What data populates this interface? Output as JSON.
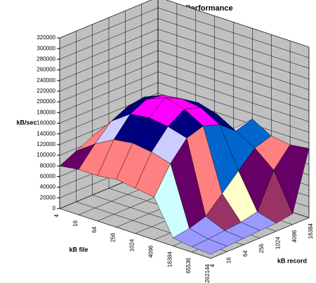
{
  "chart_data": {
    "type": "surface",
    "title": "Read Performance",
    "x_label": "kB file",
    "y_label": "kB record",
    "z_label": "kB/sec",
    "x_categories": [
      "4",
      "16",
      "64",
      "256",
      "1024",
      "4096",
      "16384",
      "65536",
      "262144"
    ],
    "y_categories": [
      "4",
      "16",
      "64",
      "256",
      "1024",
      "4096",
      "16384"
    ],
    "values": [
      [
        80000,
        95000,
        110000,
        120000,
        125000,
        130000,
        135000
      ],
      [
        85000,
        120000,
        150000,
        165000,
        170000,
        150000,
        135000
      ],
      [
        85000,
        140000,
        175000,
        190000,
        185000,
        165000,
        140000
      ],
      [
        90000,
        145000,
        180000,
        205000,
        190000,
        170000,
        130000
      ],
      [
        85000,
        140000,
        175000,
        195000,
        185000,
        160000,
        120000
      ],
      [
        80000,
        130000,
        165000,
        175000,
        165000,
        140000,
        150000
      ],
      [
        15000,
        20000,
        30000,
        60000,
        90000,
        120000,
        130000
      ],
      [
        10000,
        12000,
        15000,
        18000,
        25000,
        90000,
        125000
      ],
      [
        8000,
        10000,
        12000,
        14000,
        15000,
        20000,
        130000
      ]
    ],
    "zlim": [
      0,
      320000
    ],
    "zticks": [
      0,
      20000,
      40000,
      60000,
      80000,
      100000,
      120000,
      140000,
      160000,
      180000,
      200000,
      220000,
      240000,
      260000,
      280000,
      300000,
      320000
    ],
    "band_colors": [
      "#9999ff",
      "#993366",
      "#ffffcc",
      "#ccffff",
      "#660066",
      "#ff8080",
      "#0066cc",
      "#ccccff",
      "#000080",
      "#ff00ff",
      "#ffff00",
      "#00ffff",
      "#800080",
      "#800000",
      "#008080",
      "#0000ff"
    ],
    "grid": true
  }
}
